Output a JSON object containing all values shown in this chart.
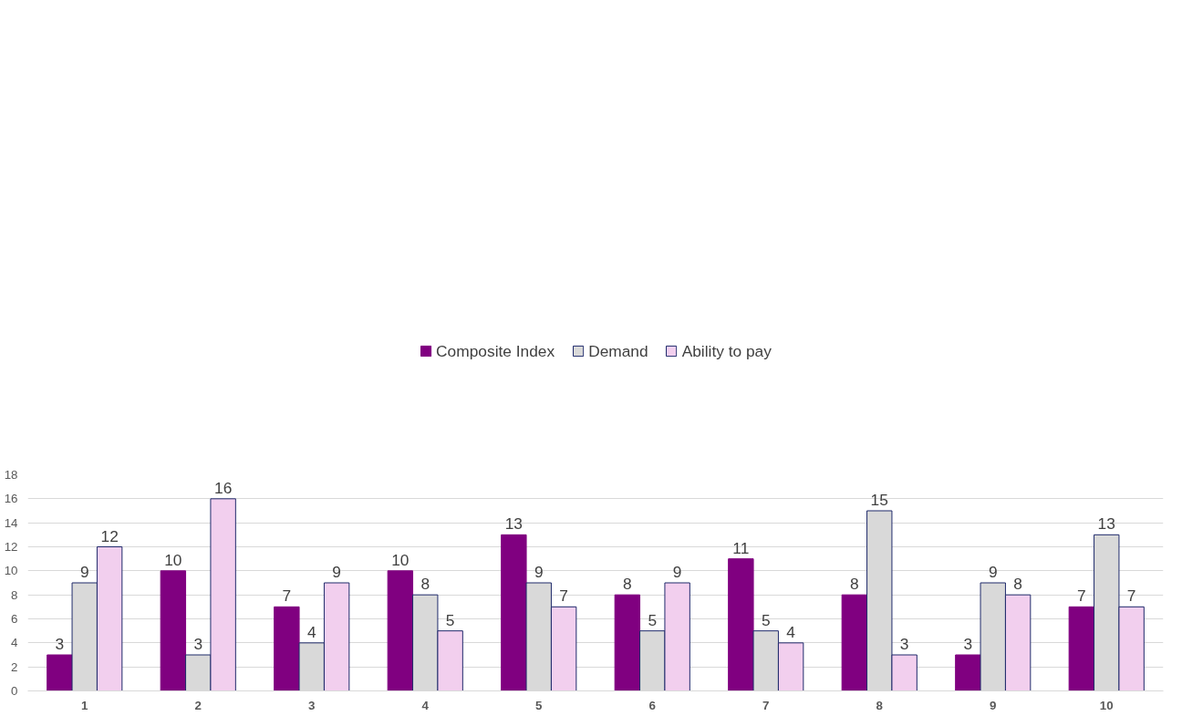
{
  "chart_data": {
    "type": "bar",
    "categories": [
      "1",
      "2",
      "3",
      "4",
      "5",
      "6",
      "7",
      "8",
      "9",
      "10"
    ],
    "series": [
      {
        "name": "Composite Index",
        "color": "#800080",
        "values": [
          3,
          10,
          7,
          10,
          13,
          8,
          11,
          8,
          3,
          7
        ]
      },
      {
        "name": "Demand",
        "color": "#d9d9d9",
        "values": [
          9,
          3,
          4,
          8,
          9,
          5,
          5,
          15,
          9,
          13
        ]
      },
      {
        "name": "Ability to pay",
        "color": "#f2cfee",
        "values": [
          12,
          16,
          9,
          5,
          7,
          9,
          4,
          3,
          8,
          7
        ]
      }
    ],
    "ylim": [
      0,
      18
    ],
    "yticks": [
      0,
      2,
      4,
      6,
      8,
      10,
      12,
      14,
      16,
      18
    ],
    "grid": "y",
    "legend": "top",
    "data_labels": true
  }
}
